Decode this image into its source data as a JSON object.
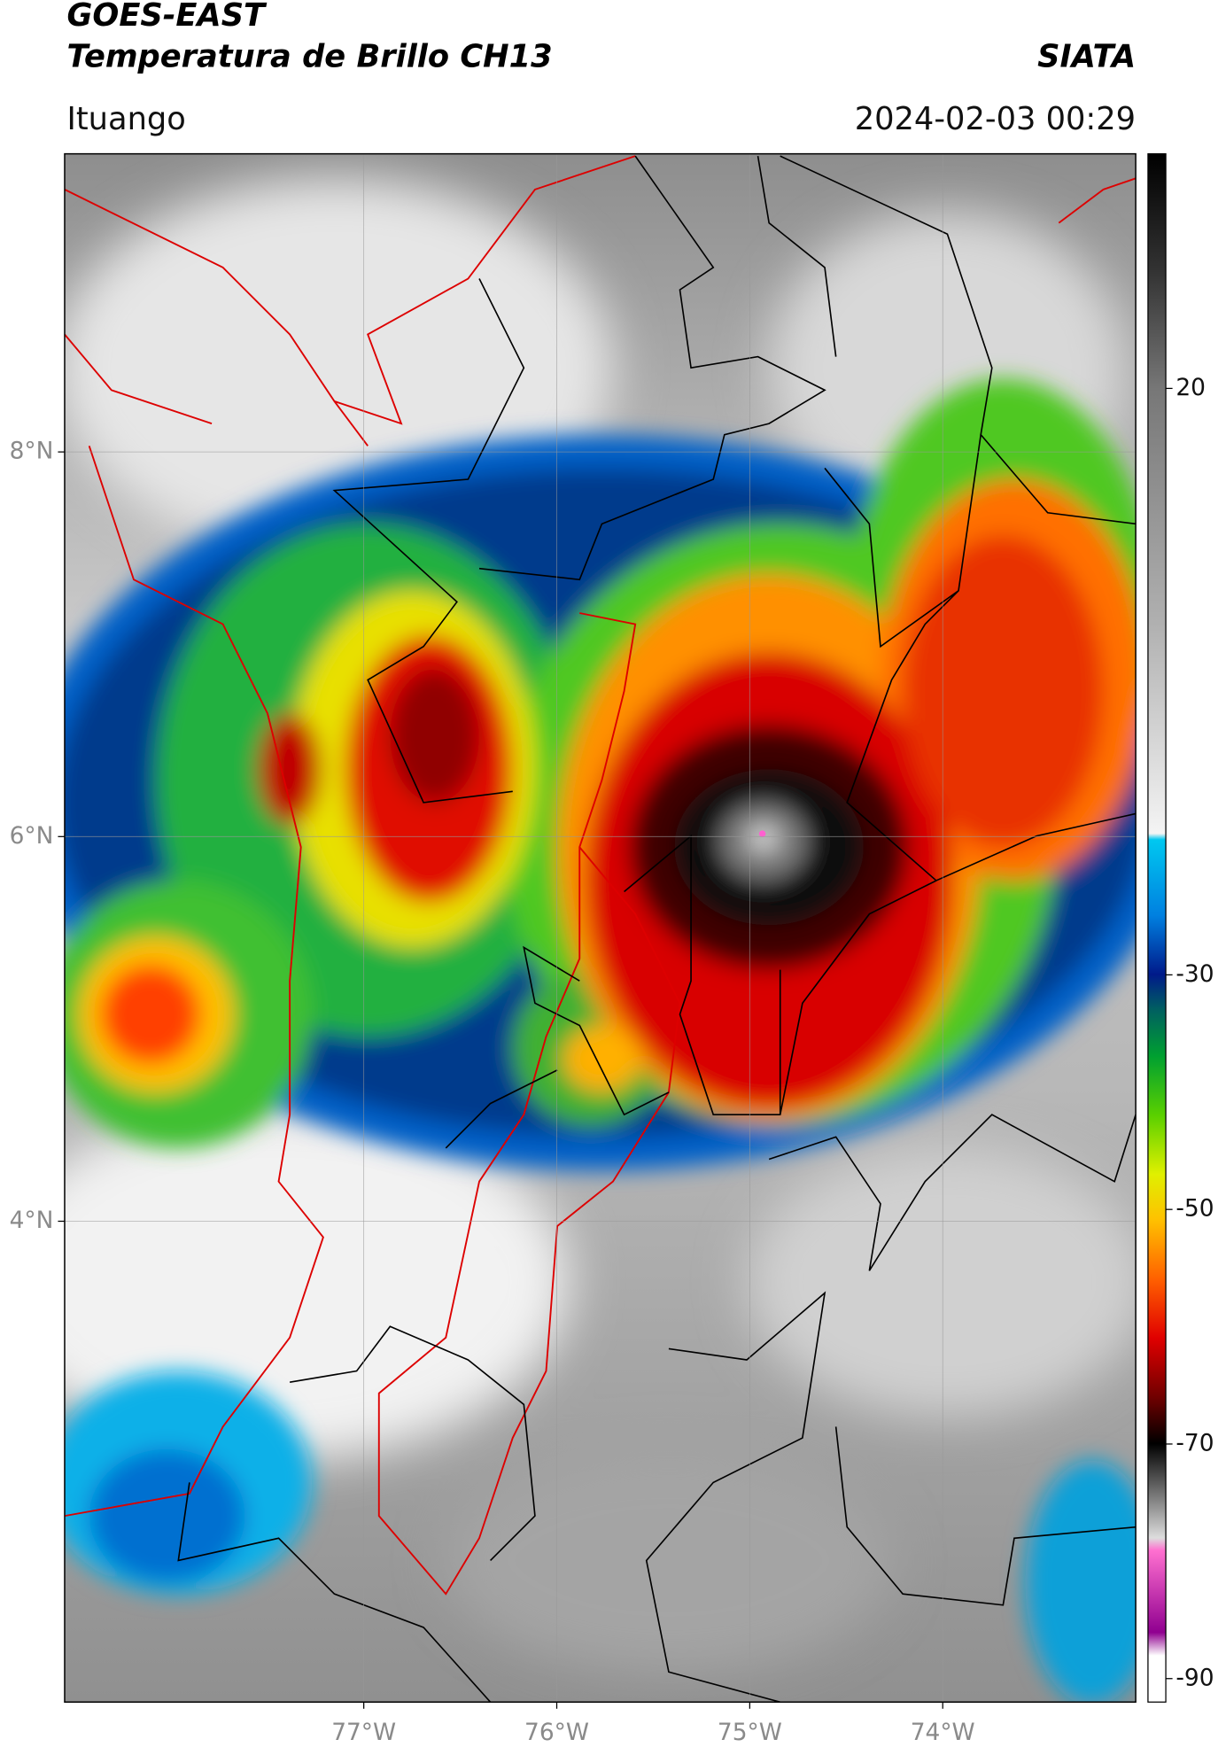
{
  "chart_data": {
    "type": "map",
    "title": "GOES-EAST",
    "subtitle": "Temperatura de Brillo CH13",
    "source": "SIATA",
    "location": "Ituango",
    "datetime": "2024-02-03 00:29",
    "xlim": [
      -78.55,
      -73.0
    ],
    "ylim": [
      1.5,
      9.55
    ],
    "xticks": [
      {
        "value": -77,
        "label": "77°W"
      },
      {
        "value": -76,
        "label": "76°W"
      },
      {
        "value": -75,
        "label": "75°W"
      },
      {
        "value": -74,
        "label": "74°W"
      }
    ],
    "yticks": [
      {
        "value": 4,
        "label": "4°N"
      },
      {
        "value": 6,
        "label": "6°N"
      },
      {
        "value": 8,
        "label": "8°N"
      }
    ],
    "grid": true,
    "colorbar": {
      "lim": [
        -92,
        40
      ],
      "ticks": [
        -90,
        -70,
        -50,
        -30,
        20
      ]
    }
  }
}
